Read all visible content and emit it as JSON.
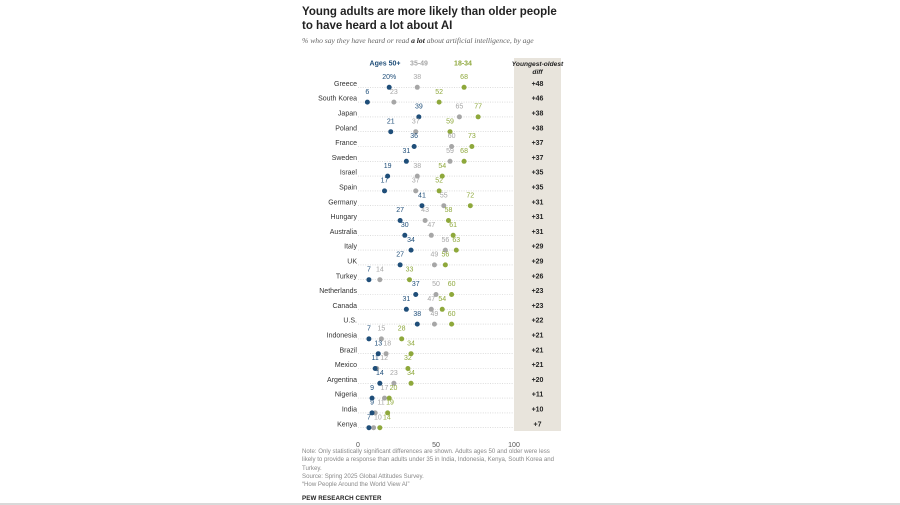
{
  "title": "Young adults are more likely than older people to have heard a lot about AI",
  "subtitle_prefix": "% who say they have heard or read ",
  "subtitle_bold": "a lot",
  "subtitle_suffix": " about artificial intelligence, by age",
  "note": "Note: Only statistically significant differences are shown. Adults ages 50 and older were less likely to provide a response than adults under 35 in India, Indonesia, Kenya, South Korea and Turkey.",
  "source": "Source: Spring 2025 Global Attitudes Survey.",
  "report": "“How People Around the World View AI”",
  "brand": "PEW RESEARCH CENTER",
  "colors": {
    "ages_50_plus": "#1f4e79",
    "ages_35_49": "#a6a6a6",
    "ages_18_34": "#8ea83b",
    "diff_panel": "#e8e4dc"
  },
  "chart_data": {
    "type": "scatter",
    "series": [
      {
        "name": "Ages 50+",
        "values": [
          20,
          6,
          39,
          21,
          36,
          31,
          19,
          17,
          41,
          27,
          30,
          34,
          27,
          7,
          37,
          31,
          38,
          7,
          13,
          11,
          14,
          9,
          9,
          7
        ]
      },
      {
        "name": "35-49",
        "values": [
          38,
          23,
          65,
          37,
          60,
          59,
          38,
          37,
          55,
          43,
          47,
          56,
          49,
          14,
          50,
          47,
          49,
          15,
          18,
          12,
          23,
          17,
          11,
          10
        ]
      },
      {
        "name": "18-34",
        "values": [
          68,
          52,
          77,
          59,
          73,
          68,
          54,
          52,
          72,
          58,
          61,
          63,
          56,
          33,
          60,
          54,
          60,
          28,
          34,
          32,
          34,
          20,
          19,
          14
        ]
      }
    ],
    "categories": [
      "Greece",
      "South Korea",
      "Japan",
      "Poland",
      "France",
      "Sweden",
      "Israel",
      "Spain",
      "Germany",
      "Hungary",
      "Australia",
      "Italy",
      "UK",
      "Turkey",
      "Netherlands",
      "Canada",
      "U.S.",
      "Indonesia",
      "Brazil",
      "Mexico",
      "Argentina",
      "Nigeria",
      "India",
      "Kenya"
    ],
    "diff_header": "Youngest-oldest diff",
    "diff": [
      "+48",
      "+46",
      "+38",
      "+38",
      "+37",
      "+37",
      "+35",
      "+35",
      "+31",
      "+31",
      "+31",
      "+29",
      "+29",
      "+26",
      "+23",
      "+23",
      "+22",
      "+21",
      "+21",
      "+21",
      "+20",
      "+11",
      "+10",
      "+7"
    ],
    "first_point_label": "20%",
    "xlim": [
      0,
      100
    ],
    "xticks": [
      "0",
      "50",
      "100"
    ],
    "grid": "dotted row guides",
    "legend": "top"
  }
}
